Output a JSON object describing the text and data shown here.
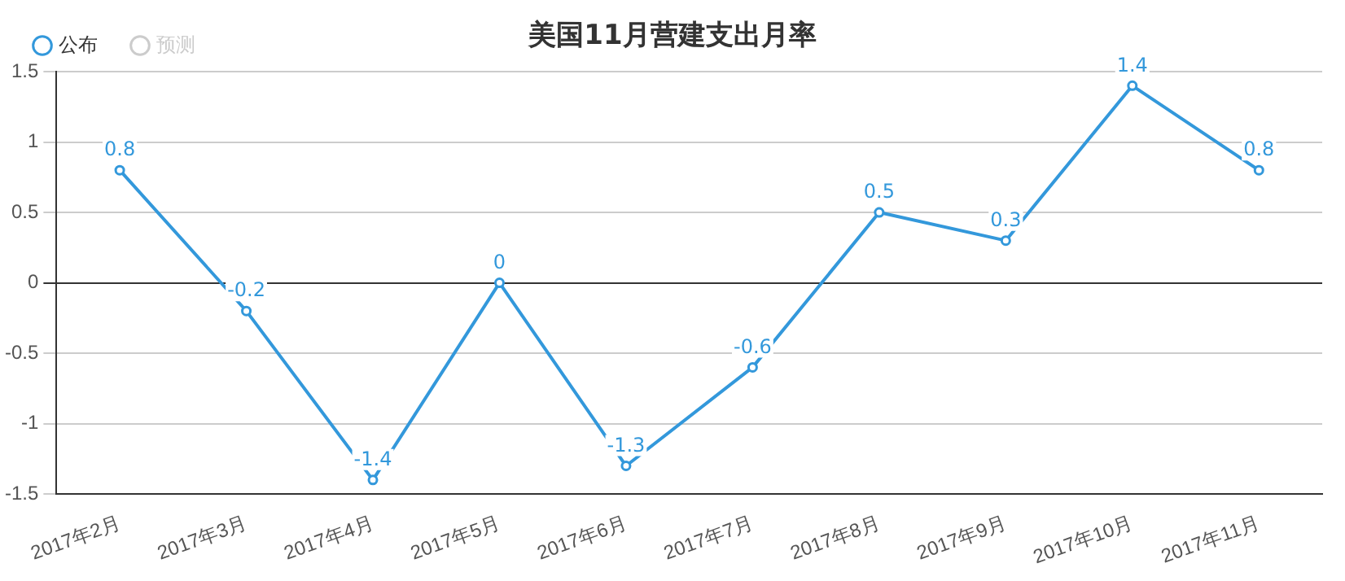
{
  "chart_data": {
    "type": "line",
    "title": "美国11月营建支出月率",
    "categories": [
      "2017年2月",
      "2017年3月",
      "2017年4月",
      "2017年5月",
      "2017年6月",
      "2017年7月",
      "2017年8月",
      "2017年9月",
      "2017年10月",
      "2017年11月"
    ],
    "series": [
      {
        "name": "公布",
        "color": "#3398db",
        "values": [
          0.8,
          -0.2,
          -1.4,
          0,
          -1.3,
          -0.6,
          0.5,
          0.3,
          1.4,
          0.8
        ]
      },
      {
        "name": "预测",
        "color": "#cccccc",
        "values": [
          null,
          null,
          null,
          null,
          null,
          null,
          null,
          null,
          null,
          null
        ]
      }
    ],
    "ylim": [
      -1.5,
      1.5
    ],
    "yticks": [
      -1.5,
      -1,
      -0.5,
      0,
      0.5,
      1,
      1.5
    ],
    "grid": "y",
    "legend": "top left",
    "marker": "circle",
    "line_style": "solid",
    "data_labels": true
  }
}
